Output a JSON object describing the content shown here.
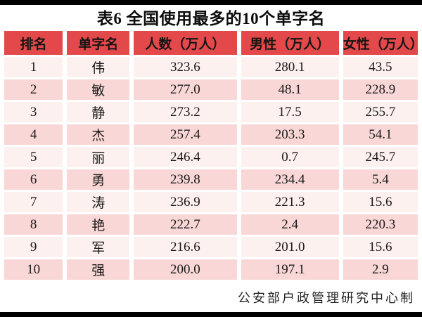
{
  "chart_data": {
    "type": "table",
    "title": "表6 全国使用最多的10个单字名",
    "columns": [
      "排名",
      "单字名",
      "人数（万人）",
      "男性（万人）",
      "女性（万人）"
    ],
    "rows": [
      [
        "1",
        "伟",
        "323.6",
        "280.1",
        "43.5"
      ],
      [
        "2",
        "敏",
        "277.0",
        "48.1",
        "228.9"
      ],
      [
        "3",
        "静",
        "273.2",
        "17.5",
        "255.7"
      ],
      [
        "4",
        "杰",
        "257.4",
        "203.3",
        "54.1"
      ],
      [
        "5",
        "丽",
        "246.4",
        "0.7",
        "245.7"
      ],
      [
        "6",
        "勇",
        "239.8",
        "234.4",
        "5.4"
      ],
      [
        "7",
        "涛",
        "236.9",
        "221.3",
        "15.6"
      ],
      [
        "8",
        "艳",
        "222.7",
        "2.4",
        "220.3"
      ],
      [
        "9",
        "军",
        "216.6",
        "201.0",
        "15.6"
      ],
      [
        "10",
        "强",
        "200.0",
        "197.1",
        "2.9"
      ]
    ],
    "source_note": "公安部户政管理研究中心制",
    "layout": {
      "header_row": true,
      "zebra_striping": true,
      "legend_position": "none",
      "grid": "cell-gap-white"
    }
  },
  "colors": {
    "header_bg": "#e3494a",
    "row_light": "#fdf1ef",
    "row_dark": "#f8d7d6",
    "frame_bar": "#000000",
    "header_text": "#151515",
    "body_text": "#1a1a1a"
  }
}
